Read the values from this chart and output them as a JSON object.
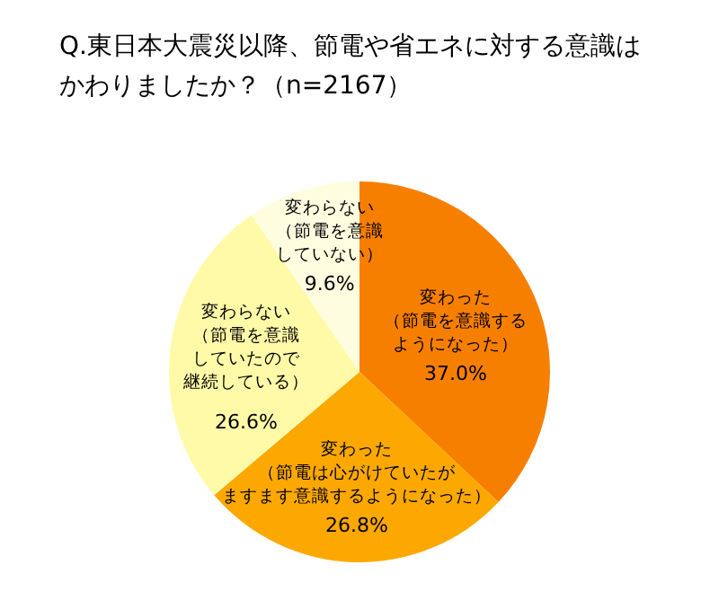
{
  "chart_data": {
    "type": "pie",
    "title": "Q.東日本大震災以降、節電や省エネに対する意識はかわりましたか？（n=2167）",
    "categories": [
      "変わった（節電を意識するようになった）",
      "変わった（節電は心がけていたがますます意識するようになった）",
      "変わらない（節電を意識していたので継続している）",
      "変わらない（節電を意識していない）"
    ],
    "values": [
      37.0,
      26.8,
      26.6,
      9.6
    ],
    "value_labels": [
      "37.0%",
      "26.8%",
      "26.6%",
      "9.6%"
    ],
    "colors": [
      "#f77f00",
      "#fca800",
      "#fffaa8",
      "#fffde0"
    ]
  }
}
